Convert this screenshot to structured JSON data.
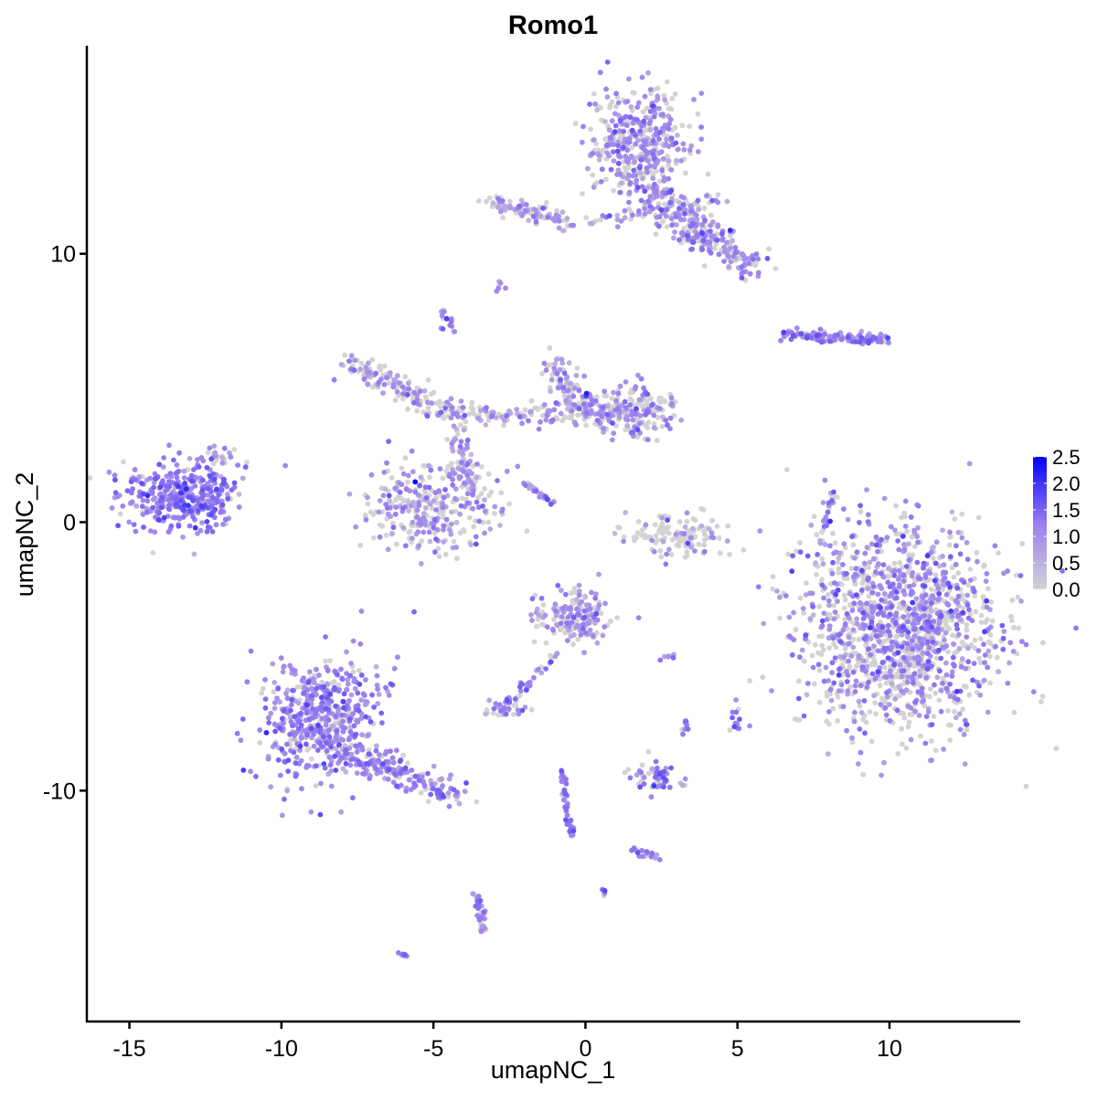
{
  "chart_data": {
    "type": "scatter",
    "title": "Romo1",
    "xlabel": "umapNC_1",
    "ylabel": "umapNC_2",
    "xlim": [
      -16.4,
      14.3
    ],
    "ylim": [
      -18.6,
      17.75
    ],
    "x_ticks": [
      -15,
      -10,
      -5,
      0,
      5,
      10
    ],
    "y_ticks": [
      -10,
      0,
      10
    ],
    "x_tick_labels": [
      "-15",
      "-10",
      "-5",
      "0",
      "5",
      "10"
    ],
    "y_tick_labels": [
      "-10",
      "0",
      "10"
    ],
    "grid": false,
    "legend": {
      "placement": "right",
      "type": "colorbar",
      "range": [
        0,
        2.5
      ],
      "tick_labels": [
        "2.5",
        "2.0",
        "1.5",
        "1.0",
        "0.5",
        "0.0"
      ],
      "ticks": [
        2.5,
        2.0,
        1.5,
        1.0,
        0.5,
        0.0
      ]
    },
    "colors": {
      "low": "#d3d3d3",
      "mid": "#9a7ef0",
      "high": "#0000ff"
    },
    "clusters": [
      {
        "center": [
          -13.3,
          0.9
        ],
        "spread": [
          0.9,
          0.6
        ],
        "n": 380,
        "zero_frac": 0.1,
        "expr": 1.2
      },
      {
        "center": [
          -8.7,
          -7.4
        ],
        "spread": [
          1.0,
          1.2
        ],
        "n": 520,
        "zero_frac": 0.15,
        "expr": 1.1
      },
      {
        "line": [
          [
            -8.0,
            -8.5
          ],
          [
            -4.1,
            -10.3
          ]
        ],
        "width": 0.5,
        "n": 160,
        "zero_frac": 0.2,
        "expr": 1.1
      },
      {
        "center": [
          10.4,
          -4.1
        ],
        "spread": [
          1.6,
          1.9
        ],
        "n": 1400,
        "zero_frac": 0.5,
        "expr": 1.1
      },
      {
        "center": [
          1.8,
          14.0
        ],
        "spread": [
          0.8,
          1.0
        ],
        "n": 420,
        "zero_frac": 0.4,
        "expr": 1.0
      },
      {
        "line": [
          [
            2.2,
            12.2
          ],
          [
            5.4,
            9.5
          ]
        ],
        "width": 0.6,
        "n": 260,
        "zero_frac": 0.4,
        "expr": 1.0
      },
      {
        "line": [
          [
            -3.3,
            12.0
          ],
          [
            -0.6,
            11.2
          ]
        ],
        "width": 0.35,
        "n": 90,
        "zero_frac": 0.45,
        "expr": 0.9
      },
      {
        "line": [
          [
            0.0,
            11.2
          ],
          [
            4.5,
            12.0
          ]
        ],
        "width": 0.3,
        "n": 60,
        "zero_frac": 0.5,
        "expr": 0.9
      },
      {
        "line": [
          [
            -7.7,
            6.0
          ],
          [
            -4.8,
            4.2
          ]
        ],
        "width": 0.5,
        "n": 130,
        "zero_frac": 0.45,
        "expr": 0.9
      },
      {
        "line": [
          [
            -4.8,
            4.0
          ],
          [
            1.5,
            4.0
          ]
        ],
        "width": 0.4,
        "n": 160,
        "zero_frac": 0.5,
        "expr": 0.9
      },
      {
        "line": [
          [
            -1.2,
            6.0
          ],
          [
            0.0,
            4.2
          ]
        ],
        "width": 0.5,
        "n": 100,
        "zero_frac": 0.45,
        "expr": 0.9
      },
      {
        "center": [
          1.6,
          4.1
        ],
        "spread": [
          0.7,
          0.5
        ],
        "n": 170,
        "zero_frac": 0.45,
        "expr": 1.1
      },
      {
        "line": [
          [
            -4.2,
            3.5
          ],
          [
            -3.8,
            1.2
          ]
        ],
        "width": 0.4,
        "n": 60,
        "zero_frac": 0.4,
        "expr": 1.0
      },
      {
        "center": [
          -5.0,
          0.5
        ],
        "spread": [
          1.1,
          0.8
        ],
        "n": 300,
        "zero_frac": 0.45,
        "expr": 1.0
      },
      {
        "line": [
          [
            -2.0,
            1.5
          ],
          [
            -1.0,
            0.6
          ]
        ],
        "width": 0.1,
        "n": 25,
        "zero_frac": 0.2,
        "expr": 1.1
      },
      {
        "center": [
          3.0,
          -0.5
        ],
        "spread": [
          0.8,
          0.4
        ],
        "n": 120,
        "zero_frac": 0.7,
        "expr": 0.9
      },
      {
        "line": [
          [
            6.5,
            7.0
          ],
          [
            9.9,
            6.8
          ]
        ],
        "width": 0.2,
        "n": 130,
        "zero_frac": 0.25,
        "expr": 1.2
      },
      {
        "line": [
          [
            8.1,
            1.2
          ],
          [
            7.8,
            -0.8
          ]
        ],
        "width": 0.15,
        "n": 30,
        "zero_frac": 0.4,
        "expr": 1.0
      },
      {
        "center": [
          -0.4,
          -3.6
        ],
        "spread": [
          0.6,
          0.5
        ],
        "n": 170,
        "zero_frac": 0.5,
        "expr": 1.0
      },
      {
        "line": [
          [
            -1.0,
            -5.0
          ],
          [
            -2.6,
            -6.8
          ]
        ],
        "width": 0.2,
        "n": 30,
        "zero_frac": 0.3,
        "expr": 1.1
      },
      {
        "center": [
          -2.6,
          -6.9
        ],
        "spread": [
          0.35,
          0.2
        ],
        "n": 40,
        "zero_frac": 0.4,
        "expr": 1.1
      },
      {
        "center": [
          2.3,
          -9.5
        ],
        "spread": [
          0.4,
          0.25
        ],
        "n": 60,
        "zero_frac": 0.3,
        "expr": 1.2
      },
      {
        "line": [
          [
            -0.8,
            -9.2
          ],
          [
            -0.4,
            -12.0
          ]
        ],
        "width": 0.1,
        "n": 40,
        "zero_frac": 0.2,
        "expr": 1.2
      },
      {
        "line": [
          [
            1.6,
            -12.2
          ],
          [
            2.5,
            -12.6
          ]
        ],
        "width": 0.15,
        "n": 20,
        "zero_frac": 0.2,
        "expr": 1.1
      },
      {
        "line": [
          [
            -3.6,
            -13.8
          ],
          [
            -3.3,
            -15.3
          ]
        ],
        "width": 0.15,
        "n": 40,
        "zero_frac": 0.2,
        "expr": 1.1
      },
      {
        "center": [
          -6.0,
          -16.1
        ],
        "spread": [
          0.1,
          0.05
        ],
        "n": 6,
        "zero_frac": 0.0,
        "expr": 1.2
      },
      {
        "center": [
          -4.5,
          7.5
        ],
        "spread": [
          0.15,
          0.2
        ],
        "n": 15,
        "zero_frac": 0.2,
        "expr": 1.2
      },
      {
        "center": [
          -2.8,
          8.7
        ],
        "spread": [
          0.1,
          0.1
        ],
        "n": 6,
        "zero_frac": 0.2,
        "expr": 1.0
      },
      {
        "center": [
          5.0,
          -7.3
        ],
        "spread": [
          0.15,
          0.25
        ],
        "n": 15,
        "zero_frac": 0.3,
        "expr": 1.2
      },
      {
        "center": [
          3.3,
          -7.6
        ],
        "spread": [
          0.1,
          0.2
        ],
        "n": 8,
        "zero_frac": 0.2,
        "expr": 1.3
      },
      {
        "center": [
          2.8,
          -5.0
        ],
        "spread": [
          0.15,
          0.05
        ],
        "n": 8,
        "zero_frac": 0.3,
        "expr": 1.0
      },
      {
        "center": [
          3.2,
          10.6
        ],
        "spread": [
          0.2,
          0.1
        ],
        "n": 8,
        "zero_frac": 0.4,
        "expr": 1.0
      },
      {
        "center": [
          0.6,
          -13.8
        ],
        "spread": [
          0.08,
          0.08
        ],
        "n": 4,
        "zero_frac": 0.2,
        "expr": 1.2
      },
      {
        "center": [
          -12.0,
          2.5
        ],
        "spread": [
          0.3,
          0.2
        ],
        "n": 20,
        "zero_frac": 0.4,
        "expr": 1.0
      }
    ]
  }
}
